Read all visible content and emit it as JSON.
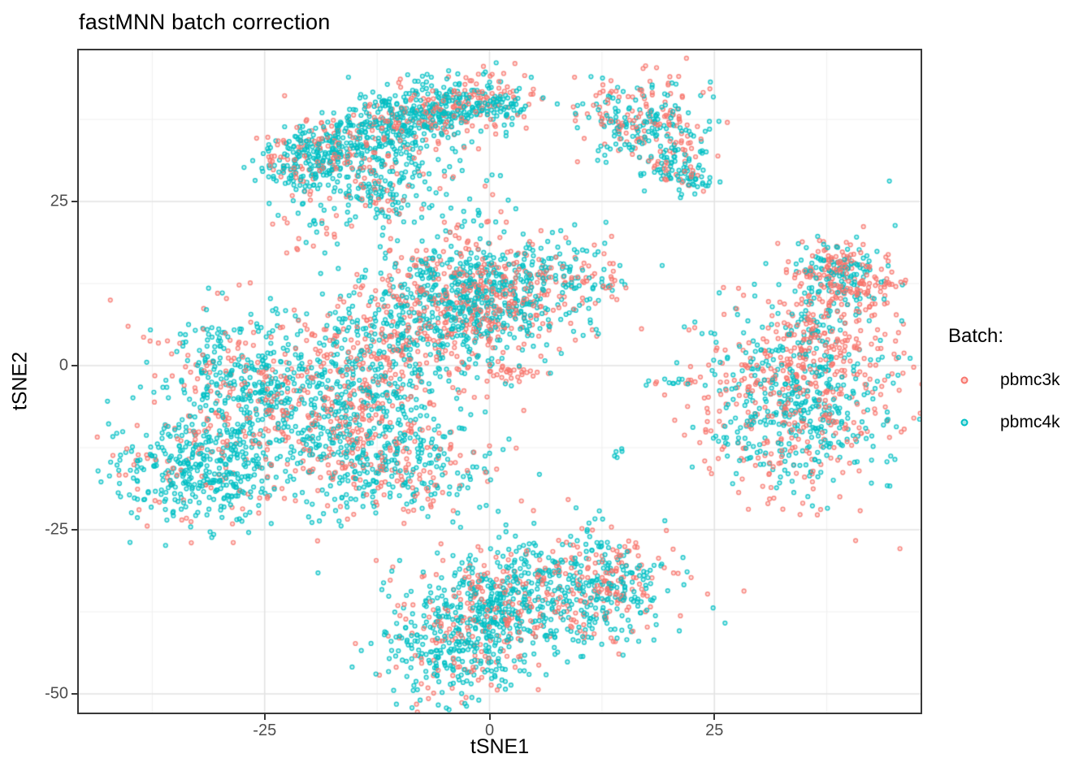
{
  "header": {
    "title": "fastMNN batch correction"
  },
  "legend": {
    "title": "Batch:",
    "items": [
      {
        "label": "pbmc3k",
        "color": "#F8766D"
      },
      {
        "label": "pbmc4k",
        "color": "#00BFC4"
      }
    ]
  },
  "colors": {
    "pbmc3k": "#F8766D",
    "pbmc4k": "#00BFC4",
    "grid_major": "#E3E3E3",
    "grid_minor": "#F0F0F0",
    "panel_border": "#383838",
    "tick_text": "#4d4d4d"
  },
  "chart_data": {
    "type": "scatter",
    "title": "fastMNN batch correction",
    "xlabel": "tSNE1",
    "ylabel": "tSNE2",
    "xlim": [
      -45.6,
      47.9
    ],
    "ylim": [
      -52.9,
      48.2
    ],
    "x_ticks": [
      -25,
      0,
      25
    ],
    "y_ticks": [
      25,
      0,
      -25,
      -50
    ],
    "x_minor_ticks": [
      -37.5,
      -12.5,
      12.5,
      37.5
    ],
    "y_minor_ticks": [
      37.5,
      12.5,
      -12.5,
      -37.5
    ],
    "grid": "major+minor",
    "legend_position": "right",
    "series": [
      {
        "name": "pbmc3k",
        "color": "#F8766D"
      },
      {
        "name": "pbmc4k",
        "color": "#00BFC4"
      }
    ],
    "point_style": {
      "shape": "open-circle",
      "radius_px": 2.4,
      "stroke_px": 1.4,
      "stroke_alpha": 0.85,
      "fill_alpha": 0.25
    },
    "seed": 42,
    "total_points_approx": 6950,
    "clusters": [
      {
        "id": "topleft-left-lobe",
        "n": 300,
        "cx": -19.5,
        "cy": 31.5,
        "sx": 3.2,
        "sy": 2.6,
        "rot": 20,
        "p3": 0.3
      },
      {
        "id": "topleft-bridge",
        "n": 220,
        "cx": -12.5,
        "cy": 35.5,
        "sx": 3.2,
        "sy": 2.6,
        "rot": 25,
        "p3": 0.28
      },
      {
        "id": "topleft-right-lobe",
        "n": 330,
        "cx": -5.5,
        "cy": 39.5,
        "sx": 3.8,
        "sy": 2.2,
        "rot": 10,
        "p3": 0.32
      },
      {
        "id": "topleft-tail-down",
        "n": 110,
        "cx": -12,
        "cy": 26.5,
        "sx": 2.2,
        "sy": 3.2,
        "rot": 0,
        "p3": 0.25
      },
      {
        "id": "topleft-spray",
        "n": 100,
        "cx": -9,
        "cy": 30.5,
        "sx": 5.5,
        "sy": 4.5,
        "rot": 0,
        "p3": 0.35
      },
      {
        "id": "topleft-right-ext",
        "n": 90,
        "cx": 0.5,
        "cy": 40.5,
        "sx": 2.5,
        "sy": 2.0,
        "rot": 0,
        "p3": 0.35
      },
      {
        "id": "topcenter-blob",
        "n": 260,
        "cx": 17,
        "cy": 37.5,
        "sx": 3.4,
        "sy": 3.6,
        "rot": 0,
        "p3": 0.45
      },
      {
        "id": "topcenter-tail",
        "n": 70,
        "cx": 20.5,
        "cy": 31,
        "sx": 1.2,
        "sy": 2.2,
        "rot": -30,
        "p3": 0.25
      },
      {
        "id": "topcenter-tail-end",
        "n": 45,
        "cx": 22.5,
        "cy": 28.5,
        "sx": 1.1,
        "sy": 1.1,
        "rot": 0,
        "p3": 0.2
      },
      {
        "id": "mid-bottomleft-dense",
        "n": 430,
        "cx": -32,
        "cy": -16,
        "sx": 4.8,
        "sy": 4.2,
        "rot": 0,
        "p3": 0.18
      },
      {
        "id": "mid-left",
        "n": 380,
        "cx": -27,
        "cy": -2,
        "sx": 5.0,
        "sy": 5.5,
        "rot": 0,
        "p3": 0.33
      },
      {
        "id": "mid-central",
        "n": 620,
        "cx": -16,
        "cy": -8,
        "sx": 6.5,
        "sy": 6.0,
        "rot": 20,
        "p3": 0.4
      },
      {
        "id": "mid-upper-center",
        "n": 540,
        "cx": -8,
        "cy": 6,
        "sx": 6.5,
        "sy": 5.0,
        "rot": 20,
        "p3": 0.48
      },
      {
        "id": "mid-right-wedge",
        "n": 460,
        "cx": 1.5,
        "cy": 10.5,
        "sx": 5.5,
        "sy": 4.0,
        "rot": 25,
        "p3": 0.45
      },
      {
        "id": "mid-top-band",
        "n": 200,
        "cx": -3,
        "cy": 14,
        "sx": 4.5,
        "sy": 2.8,
        "rot": 15,
        "p3": 0.4
      },
      {
        "id": "mid-lower",
        "n": 260,
        "cx": -10,
        "cy": -16,
        "sx": 5.0,
        "sy": 4.0,
        "rot": 0,
        "p3": 0.35
      },
      {
        "id": "mid-salmon-streak",
        "n": 26,
        "cx": 2.8,
        "cy": -1.2,
        "sx": 1.4,
        "sy": 0.5,
        "rot": 0,
        "p3": 1.0
      },
      {
        "id": "mid-right-tip",
        "n": 60,
        "cx": 10,
        "cy": 13.5,
        "sx": 3.0,
        "sy": 2.5,
        "rot": 0,
        "p3": 0.5
      },
      {
        "id": "right-core-teal",
        "n": 420,
        "cx": 34,
        "cy": -6,
        "sx": 4.6,
        "sy": 6.2,
        "rot": 0,
        "p3": 0.28
      },
      {
        "id": "right-shell-salmon",
        "n": 400,
        "cx": 35,
        "cy": -3.5,
        "sx": 6.5,
        "sy": 8.0,
        "rot": 0,
        "p3": 0.72
      },
      {
        "id": "right-neck",
        "n": 110,
        "cx": 36.5,
        "cy": 7,
        "sx": 1.8,
        "sy": 3.2,
        "rot": -20,
        "p3": 0.6
      },
      {
        "id": "right-knob",
        "n": 190,
        "cx": 38.5,
        "cy": 14.8,
        "sx": 2.4,
        "sy": 2.2,
        "rot": 0,
        "p3": 0.55
      },
      {
        "id": "right-knob-wing",
        "n": 60,
        "cx": 42,
        "cy": 11.5,
        "sx": 1.8,
        "sy": 1.8,
        "rot": 0,
        "p3": 0.85
      },
      {
        "id": "bottom-left-lobe",
        "n": 400,
        "cx": -3.5,
        "cy": -42,
        "sx": 4.2,
        "sy": 4.6,
        "rot": -15,
        "p3": 0.22
      },
      {
        "id": "bottom-right-lobe",
        "n": 560,
        "cx": 7.5,
        "cy": -34.5,
        "sx": 6.5,
        "sy": 4.6,
        "rot": 15,
        "p3": 0.3
      },
      {
        "id": "bottom-right-edge",
        "n": 90,
        "cx": 14.5,
        "cy": -33,
        "sx": 2.2,
        "sy": 3.2,
        "rot": 0,
        "p3": 0.7
      },
      {
        "id": "bottom-connector",
        "n": 90,
        "cx": 1.5,
        "cy": -36.5,
        "sx": 2.6,
        "sy": 3.2,
        "rot": -20,
        "p3": 0.35
      },
      {
        "id": "bottom-top-spur",
        "n": 30,
        "cx": -1.8,
        "cy": -33.5,
        "sx": 1.2,
        "sy": 1.2,
        "rot": 0,
        "p3": 0.3
      },
      {
        "id": "iso-teal-pair-a",
        "n": 3,
        "cx": 9.3,
        "cy": 8.3,
        "sx": 0.4,
        "sy": 0.4,
        "rot": 0,
        "p3": 0.25
      },
      {
        "id": "iso-mixed-trio",
        "n": 3,
        "cx": 11.8,
        "cy": 4.8,
        "sx": 0.5,
        "sy": 0.4,
        "rot": 0,
        "p3": 0.33
      },
      {
        "id": "iso-teal-quad",
        "n": 4,
        "cx": 22,
        "cy": 5.8,
        "sx": 0.6,
        "sy": 0.4,
        "rot": 0,
        "p3": 0.3
      },
      {
        "id": "iso-mixed-streak",
        "n": 14,
        "cx": 20.8,
        "cy": -2.6,
        "sx": 1.6,
        "sy": 0.6,
        "rot": 0,
        "p3": 0.5
      },
      {
        "id": "iso-teal-clump",
        "n": 5,
        "cx": 13.9,
        "cy": -13.2,
        "sx": 0.5,
        "sy": 0.4,
        "rot": 0,
        "p3": 0.1
      },
      {
        "id": "iso-teal-dot",
        "n": 2,
        "cx": 26.3,
        "cy": -10.8,
        "sx": 0.3,
        "sy": 0.3,
        "rot": 0,
        "p3": 0.0
      },
      {
        "id": "iso-salmon-outlier",
        "n": 1,
        "cx": -41.3,
        "cy": -16.8,
        "sx": 0.1,
        "sy": 0.1,
        "rot": 0,
        "p3": 1.0
      },
      {
        "id": "gap-sparse-left",
        "n": 35,
        "cx": -19,
        "cy": 21.5,
        "sx": 2.3,
        "sy": 2.8,
        "rot": 0,
        "p3": 0.35
      },
      {
        "id": "gap-sparse-center",
        "n": 30,
        "cx": -2.5,
        "cy": 23,
        "sx": 2.8,
        "sy": 2.8,
        "rot": 0,
        "p3": 0.4
      }
    ]
  }
}
